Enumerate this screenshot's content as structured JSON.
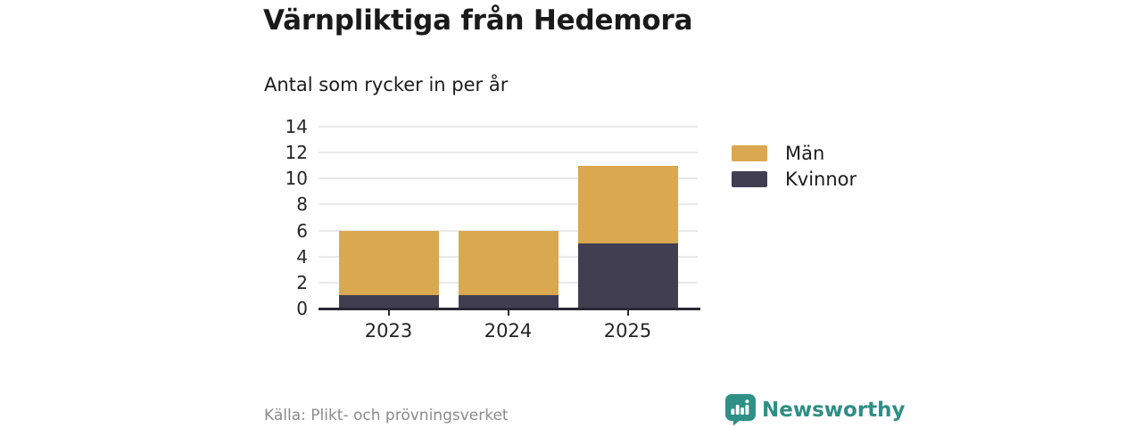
{
  "header": {
    "title": "Värnpliktiga från Hedemora",
    "subtitle": "Antal som rycker in per år"
  },
  "chart_data": {
    "type": "bar",
    "stacked": true,
    "title": "Värnpliktiga från Hedemora",
    "subtitle": "Antal som rycker in per år",
    "categories": [
      "2023",
      "2024",
      "2025"
    ],
    "series": [
      {
        "name": "Kvinnor",
        "color": "#413e52",
        "values": [
          1,
          1,
          5
        ]
      },
      {
        "name": "Män",
        "color": "#d9a850",
        "values": [
          5,
          5,
          6
        ]
      }
    ],
    "stack_order_bottom_to_top": [
      "Kvinnor",
      "Män"
    ],
    "legend_order_top_to_bottom": [
      "Män",
      "Kvinnor"
    ],
    "totals": [
      6,
      6,
      11
    ],
    "ylim": [
      0,
      14
    ],
    "yticks": [
      0,
      2,
      4,
      6,
      8,
      10,
      12,
      14
    ],
    "grid": true,
    "legend_position": "right-of-plot"
  },
  "footer": {
    "source": "Källa: Plikt- och prövningsverket",
    "brand": "Newsworthy"
  },
  "colors": {
    "man_gold": "#d9a850",
    "kvinnor_dark": "#413e52",
    "axis": "#2a2833",
    "gridline": "#e9e9e9",
    "title_text": "#1a1a1a",
    "muted_text": "#8b8b8b",
    "brand_teal": "#2f8e85",
    "background": "#ffffff"
  }
}
